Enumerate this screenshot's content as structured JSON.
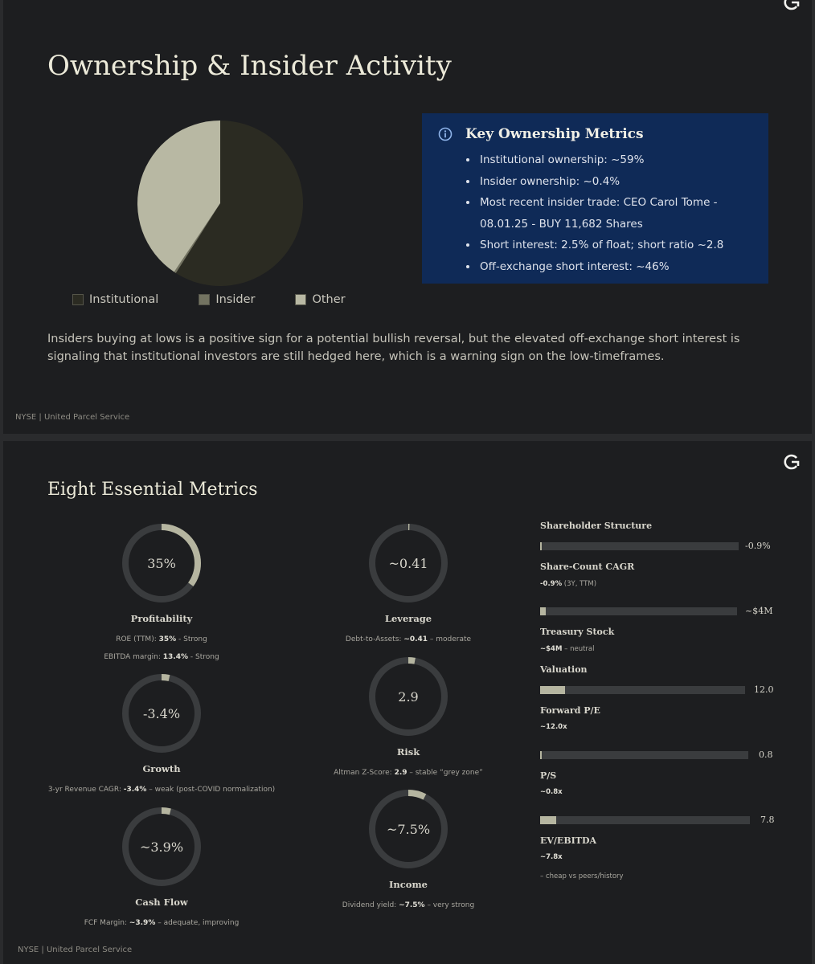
{
  "slide1": {
    "title": "Ownership & Insider Activity",
    "pie": [
      {
        "name": "Institutional",
        "value": 59,
        "color": "#2b2b22"
      },
      {
        "name": "Insider",
        "value": 0.4,
        "color": "#737361"
      },
      {
        "name": "Other",
        "value": 40.6,
        "color": "#b8b8a3"
      }
    ],
    "callout": {
      "title": "Key Ownership Metrics",
      "items": [
        "Institutional ownership: ~59%",
        "Insider ownership: ~0.4%",
        "Most recent insider trade: CEO Carol Tome - 08.01.25 - BUY 11,682 Shares",
        "Short interest: 2.5% of float; short ratio ~2.8",
        "Off-exchange short interest: ~46%"
      ]
    },
    "paragraph": "Insiders buying at lows is a positive sign for a potential bullish reversal, but the elevated off-exchange short interest is signaling that institutional investors are still hedged here, which is a warning sign on the low-timeframes.",
    "footer": "NYSE | United Parcel Service"
  },
  "slide2": {
    "title": "Eight Essential Metrics",
    "footer": "NYSE | United Parcel Service",
    "metrics": [
      {
        "value": "35%",
        "fraction": 0.35,
        "label": "Profitability",
        "details": [
          [
            "ROE (TTM): ",
            "35%",
            " - Strong"
          ],
          [
            "EBITDA margin: ",
            "13.4%",
            " - Strong"
          ]
        ]
      },
      {
        "value": "~0.41",
        "fraction": 0.005,
        "label": "Leverage",
        "details": [
          [
            "Debt-to-Assets: ",
            "~0.41",
            " – moderate"
          ]
        ]
      },
      {
        "value": "-3.4%",
        "fraction": 0.034,
        "label": "Growth",
        "details": [
          [
            "3-yr Revenue CAGR: ",
            "-3.4%",
            " – weak (post-COVID normalization)"
          ]
        ]
      },
      {
        "value": "2.9",
        "fraction": 0.029,
        "label": "Risk",
        "details": [
          [
            "Altman Z-Score: ",
            "2.9",
            " – stable “grey zone”"
          ]
        ]
      },
      {
        "value": "~3.9%",
        "fraction": 0.039,
        "label": "Cash Flow",
        "details": [
          [
            "FCF Margin: ",
            "~3.9%",
            " – adequate, improving"
          ]
        ]
      },
      {
        "value": "~7.5%",
        "fraction": 0.075,
        "label": "Income",
        "details": [
          [
            "Dividend yield: ",
            "~7.5%",
            " – very strong"
          ]
        ]
      }
    ],
    "right": {
      "shareholder_structure": "Shareholder Structure",
      "share_count_bar_value": "-0.9%",
      "share_count_bar_fraction": 0.009,
      "share_count_title": "Share-Count CAGR",
      "share_count_sub_bold": "-0.9%",
      "share_count_sub_rest": " (3Y, TTM)",
      "treasury_bar_value": "~$4M",
      "treasury_bar_fraction": 0.03,
      "treasury_title": "Treasury Stock",
      "treasury_sub_bold": "~$4M",
      "treasury_sub_rest": " – neutral",
      "valuation": "Valuation",
      "pe_bar_value": "12.0",
      "pe_bar_fraction": 0.12,
      "pe_title": "Forward P/E",
      "pe_sub": "~12.0x",
      "ps_bar_value": "0.8",
      "ps_bar_fraction": 0.008,
      "ps_title": "P/S",
      "ps_sub": "~0.8x",
      "ev_bar_value": "7.8",
      "ev_bar_fraction": 0.078,
      "ev_title": "EV/EBITDA",
      "ev_sub": "~7.8x",
      "note": "– cheap vs peers/history"
    }
  },
  "colors": {
    "ring_track": "#3a3c3e",
    "ring_fill": "#b5b5a0",
    "callout_bg": "#0f2a57"
  }
}
